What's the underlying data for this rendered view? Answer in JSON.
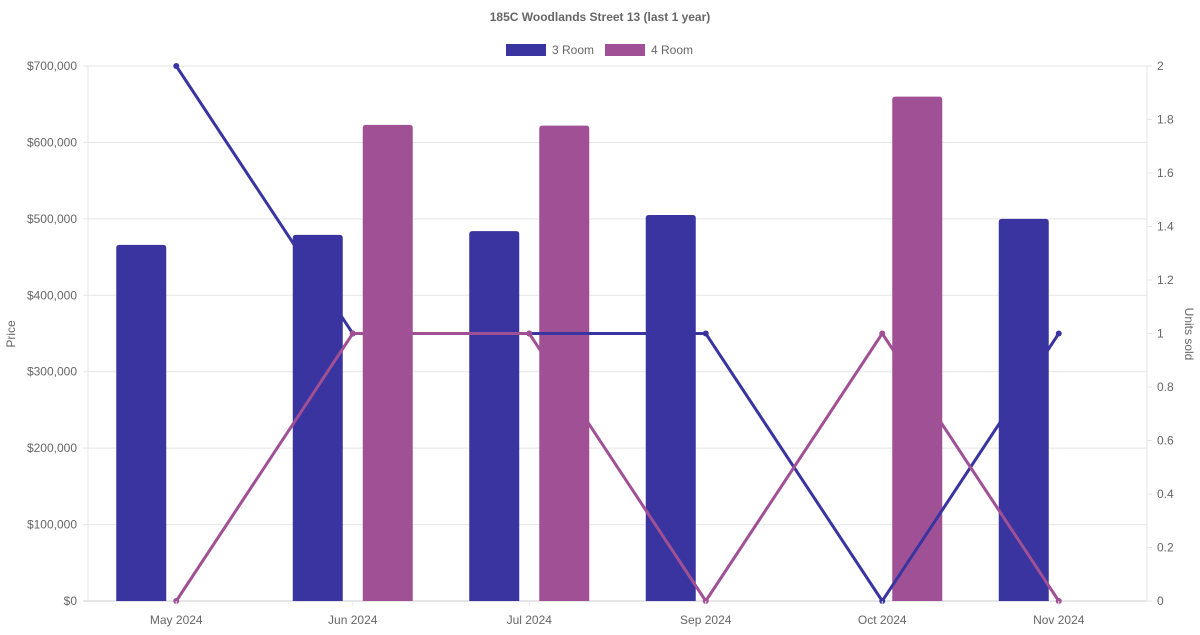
{
  "chart_data": {
    "type": "bar",
    "title": "185C Woodlands Street 13 (last 1 year)",
    "categories": [
      "May 2024",
      "Jun 2024",
      "Jul 2024",
      "Sep 2024",
      "Oct 2024",
      "Nov 2024"
    ],
    "ylabel": "Price",
    "y2label": "Units sold",
    "ylim": [
      0,
      700000
    ],
    "y2lim": [
      0,
      2
    ],
    "yticks": [
      "$0",
      "$100,000",
      "$200,000",
      "$300,000",
      "$400,000",
      "$500,000",
      "$600,000",
      "$700,000"
    ],
    "y2ticks": [
      "0",
      "0.2",
      "0.4",
      "0.6",
      "0.8",
      "1",
      "1.2",
      "1.4",
      "1.6",
      "1.8",
      "2"
    ],
    "legend_position": "top",
    "grid": true,
    "series": [
      {
        "name": "3 Room",
        "color": "#3a34a0",
        "price": [
          466000,
          479000,
          484000,
          505000,
          null,
          500000
        ],
        "units": [
          2,
          1,
          1,
          1,
          0,
          1
        ]
      },
      {
        "name": "4 Room",
        "color": "#a05094",
        "price": [
          null,
          623000,
          622000,
          null,
          660000,
          null
        ],
        "units": [
          0,
          1,
          1,
          0,
          1,
          0
        ]
      }
    ]
  }
}
